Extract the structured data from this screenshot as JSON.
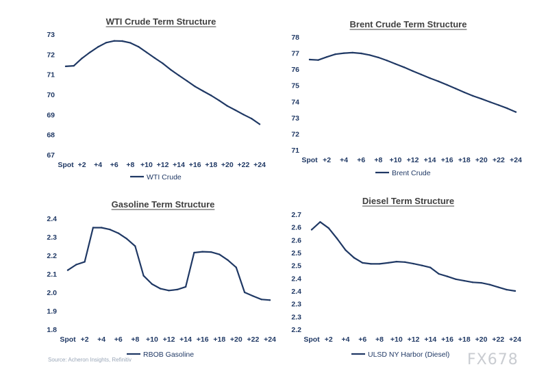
{
  "source": "Source: Acheron Insights, Refinitiv",
  "watermark": "FX678",
  "chart_data": [
    {
      "type": "line",
      "title": "WTI Crude Term Structure",
      "categories": [
        "Spot",
        "+1",
        "+2",
        "+3",
        "+4",
        "+5",
        "+6",
        "+7",
        "+8",
        "+9",
        "+10",
        "+11",
        "+12",
        "+13",
        "+14",
        "+15",
        "+16",
        "+17",
        "+18",
        "+19",
        "+20",
        "+21",
        "+22",
        "+23",
        "+24"
      ],
      "x_tick_labels": [
        "Spot",
        "+2",
        "+4",
        "+6",
        "+8",
        "+10",
        "+12",
        "+14",
        "+16",
        "+18",
        "+20",
        "+22",
        "+24"
      ],
      "y_ticks": [
        "73",
        "72",
        "71",
        "70",
        "69",
        "68",
        "67"
      ],
      "ylim": [
        67,
        73
      ],
      "legend_position": "bottom",
      "series": [
        {
          "name": "WTI Crude",
          "values": [
            71.4,
            71.43,
            71.8,
            72.1,
            72.37,
            72.58,
            72.67,
            72.66,
            72.57,
            72.38,
            72.1,
            71.82,
            71.55,
            71.23,
            70.95,
            70.68,
            70.4,
            70.17,
            69.95,
            69.7,
            69.43,
            69.22,
            69.0,
            68.8,
            68.52
          ]
        }
      ]
    },
    {
      "type": "line",
      "title": "Brent Crude Term Structure",
      "categories": [
        "Spot",
        "+1",
        "+2",
        "+3",
        "+4",
        "+5",
        "+6",
        "+7",
        "+8",
        "+9",
        "+10",
        "+11",
        "+12",
        "+13",
        "+14",
        "+15",
        "+16",
        "+17",
        "+18",
        "+19",
        "+20",
        "+21",
        "+22",
        "+23",
        "+24"
      ],
      "x_tick_labels": [
        "Spot",
        "+2",
        "+4",
        "+6",
        "+8",
        "+10",
        "+12",
        "+14",
        "+16",
        "+18",
        "+20",
        "+22",
        "+24"
      ],
      "y_ticks": [
        "78",
        "77",
        "76",
        "75",
        "74",
        "73",
        "72",
        "71"
      ],
      "ylim": [
        71,
        78
      ],
      "legend_position": "bottom",
      "series": [
        {
          "name": "Brent Crude",
          "values": [
            76.6,
            76.57,
            76.76,
            76.93,
            77.0,
            77.03,
            76.98,
            76.88,
            76.73,
            76.54,
            76.33,
            76.12,
            75.89,
            75.67,
            75.45,
            75.25,
            75.03,
            74.8,
            74.57,
            74.35,
            74.17,
            73.97,
            73.78,
            73.58,
            73.35
          ]
        }
      ]
    },
    {
      "type": "line",
      "title": "Gasoline Term Structure",
      "categories": [
        "Spot",
        "+1",
        "+2",
        "+3",
        "+4",
        "+5",
        "+6",
        "+7",
        "+8",
        "+9",
        "+10",
        "+11",
        "+12",
        "+13",
        "+14",
        "+15",
        "+16",
        "+17",
        "+18",
        "+19",
        "+20",
        "+21",
        "+22",
        "+23",
        "+24"
      ],
      "x_tick_labels": [
        "Spot",
        "+2",
        "+4",
        "+6",
        "+8",
        "+10",
        "+12",
        "+14",
        "+16",
        "+18",
        "+20",
        "+22",
        "+24"
      ],
      "y_ticks": [
        "2.4",
        "2.3",
        "2.2",
        "2.1",
        "2.0",
        "1.9",
        "1.8"
      ],
      "ylim": [
        1.8,
        2.4
      ],
      "legend_position": "bottom",
      "series": [
        {
          "name": "RBOB Gasoline",
          "values": [
            2.12,
            2.15,
            2.165,
            2.35,
            2.35,
            2.34,
            2.32,
            2.29,
            2.25,
            2.09,
            2.045,
            2.02,
            2.01,
            2.015,
            2.03,
            2.215,
            2.22,
            2.218,
            2.205,
            2.175,
            2.135,
            2.0,
            1.98,
            1.962,
            1.958
          ]
        }
      ]
    },
    {
      "type": "line",
      "title": "Diesel Term Structure",
      "categories": [
        "Spot",
        "+1",
        "+2",
        "+3",
        "+4",
        "+5",
        "+6",
        "+7",
        "+8",
        "+9",
        "+10",
        "+11",
        "+12",
        "+13",
        "+14",
        "+15",
        "+16",
        "+17",
        "+18",
        "+19",
        "+20",
        "+21",
        "+22",
        "+23",
        "+24"
      ],
      "x_tick_labels": [
        "Spot",
        "+2",
        "+4",
        "+6",
        "+8",
        "+10",
        "+12",
        "+14",
        "+16",
        "+18",
        "+20",
        "+22",
        "+24"
      ],
      "y_ticks": [
        "2.7",
        "2.6",
        "2.6",
        "2.5",
        "2.5",
        "2.4",
        "2.4",
        "2.3",
        "2.3",
        "2.2"
      ],
      "ylim": [
        2.2,
        2.65
      ],
      "legend_position": "bottom",
      "series": [
        {
          "name": "ULSD NY Harbor (Diesel)",
          "values": [
            2.59,
            2.62,
            2.596,
            2.555,
            2.51,
            2.48,
            2.46,
            2.456,
            2.456,
            2.46,
            2.465,
            2.463,
            2.457,
            2.45,
            2.442,
            2.417,
            2.407,
            2.396,
            2.39,
            2.384,
            2.382,
            2.375,
            2.365,
            2.355,
            2.35
          ]
        }
      ]
    }
  ]
}
